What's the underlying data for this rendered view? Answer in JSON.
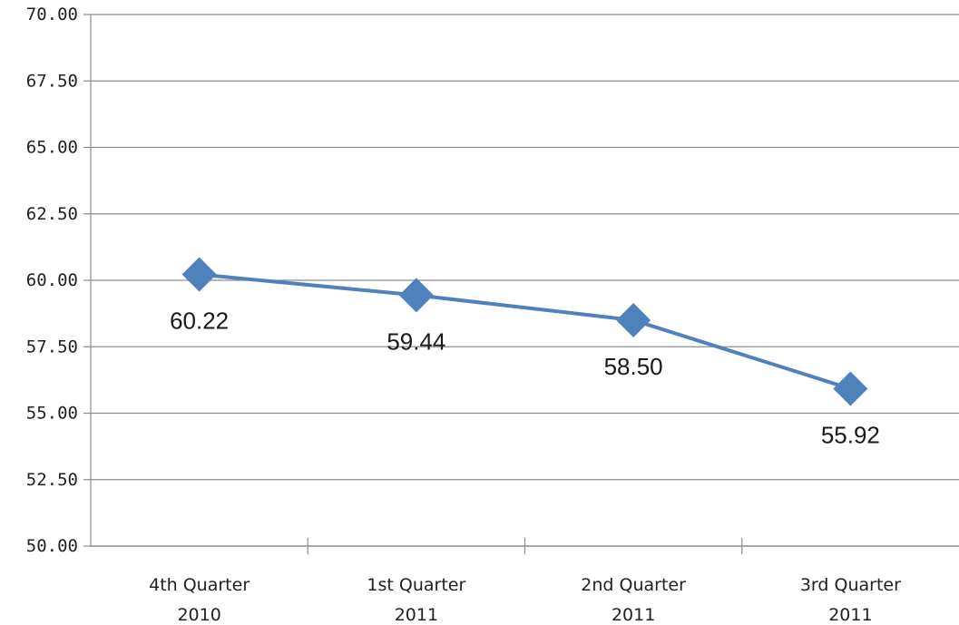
{
  "chart_data": {
    "type": "line",
    "categories": [
      [
        "4th Quarter",
        "2010"
      ],
      [
        "1st Quarter",
        "2011"
      ],
      [
        "2nd Quarter",
        "2011"
      ],
      [
        "3rd Quarter",
        "2011"
      ]
    ],
    "series": [
      {
        "values": [
          60.22,
          59.44,
          58.5,
          55.92
        ],
        "data_labels": [
          "60.22",
          "59.44",
          "58.50",
          "55.92"
        ],
        "color": "#4f81bd",
        "marker": "diamond"
      }
    ],
    "y_ticks": [
      "70.00",
      "67.50",
      "65.00",
      "62.50",
      "60.00",
      "57.50",
      "55.00",
      "52.50",
      "50.00"
    ],
    "ylim": [
      50,
      70
    ],
    "y_step": 2.5,
    "grid": "horizontal",
    "legend": "none",
    "colors": {
      "line": "#4f81bd",
      "grid": "#8c8c8c",
      "axis": "#8c8c8c"
    }
  }
}
